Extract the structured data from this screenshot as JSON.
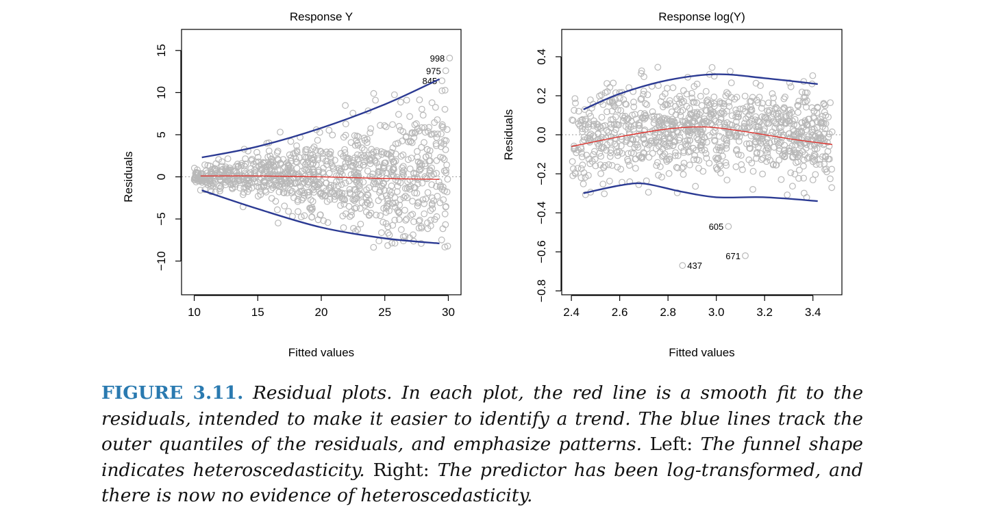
{
  "colors": {
    "points": "#b8b8b8",
    "smooth": "#e0332e",
    "quantile": "#2b3a93",
    "zero_line": "#9a9a9a",
    "caption_label": "#2a7ab0"
  },
  "chart_data": [
    {
      "type": "scatter",
      "title": "Response Y",
      "xlabel": "Fitted values",
      "ylabel": "Residuals",
      "xlim": [
        9,
        31
      ],
      "ylim": [
        -14,
        17.5
      ],
      "xticks": [
        "10",
        "15",
        "20",
        "25",
        "30"
      ],
      "xtick_values": [
        10,
        15,
        20,
        25,
        30
      ],
      "yticks": [
        "−10",
        "−5",
        "0",
        "5",
        "10",
        "15"
      ],
      "ytick_values": [
        -10,
        -5,
        0,
        5,
        10,
        15
      ],
      "zero_line": 0,
      "point_count": 1000,
      "x_range": [
        10,
        30
      ],
      "smooth_fit": {
        "x": [
          10.5,
          15,
          20,
          25,
          29.3
        ],
        "y": [
          0.1,
          0.1,
          0.0,
          -0.2,
          -0.3
        ]
      },
      "upper_quantile": {
        "x": [
          10.6,
          15,
          20,
          25,
          29.3
        ],
        "y": [
          2.3,
          3.6,
          5.8,
          8.6,
          11.6
        ]
      },
      "lower_quantile": {
        "x": [
          10.6,
          15,
          20,
          25,
          29.3
        ],
        "y": [
          -1.6,
          -3.8,
          -6.0,
          -7.3,
          -7.9
        ]
      },
      "labeled_points": [
        {
          "label": "998",
          "x": 30.1,
          "y": 14.1
        },
        {
          "label": "975",
          "x": 29.8,
          "y": 12.6
        },
        {
          "label": "845",
          "x": 29.5,
          "y": 11.4
        }
      ]
    },
    {
      "type": "scatter",
      "title": "Response log(Y)",
      "xlabel": "Fitted values",
      "ylabel": "Residuals",
      "xlim": [
        2.36,
        3.52
      ],
      "ylim": [
        -0.82,
        0.54
      ],
      "xticks": [
        "2.4",
        "2.6",
        "2.8",
        "3.0",
        "3.2",
        "3.4"
      ],
      "xtick_values": [
        2.4,
        2.6,
        2.8,
        3.0,
        3.2,
        3.4
      ],
      "yticks": [
        "−0.8",
        "−0.6",
        "−0.4",
        "−0.2",
        "0.0",
        "0.2",
        "0.4"
      ],
      "ytick_values": [
        -0.8,
        -0.6,
        -0.4,
        -0.2,
        0.0,
        0.2,
        0.4
      ],
      "zero_line": 0,
      "point_count": 1000,
      "x_range": [
        2.4,
        3.48
      ],
      "smooth_fit": {
        "x": [
          2.4,
          2.6,
          2.8,
          2.95,
          3.1,
          3.3,
          3.48
        ],
        "y": [
          -0.06,
          -0.01,
          0.03,
          0.04,
          0.02,
          -0.02,
          -0.05
        ]
      },
      "upper_quantile": {
        "x": [
          2.45,
          2.6,
          2.8,
          3.0,
          3.2,
          3.42
        ],
        "y": [
          0.13,
          0.21,
          0.28,
          0.31,
          0.29,
          0.26
        ]
      },
      "lower_quantile": {
        "x": [
          2.45,
          2.6,
          2.7,
          2.85,
          3.0,
          3.2,
          3.42
        ],
        "y": [
          -0.3,
          -0.26,
          -0.25,
          -0.29,
          -0.32,
          -0.32,
          -0.34
        ]
      },
      "labeled_points": [
        {
          "label": "605",
          "x": 3.05,
          "y": -0.47
        },
        {
          "label": "671",
          "x": 3.12,
          "y": -0.62
        },
        {
          "label": "437",
          "x": 2.86,
          "y": -0.67
        }
      ]
    }
  ],
  "caption": {
    "label": "FIGURE 3.11.",
    "part1": "Residual plots. In each plot, the red line is a smooth fit to the residuals, intended to make it easier to identify a trend. The blue lines track the outer quantiles of the residuals, and emphasize patterns.",
    "left_word": "Left:",
    "part2": "The funnel shape indicates heteroscedasticity.",
    "right_word": "Right:",
    "part3": "The predictor has been log-transformed, and there is now no evidence of heteroscedasticity."
  }
}
